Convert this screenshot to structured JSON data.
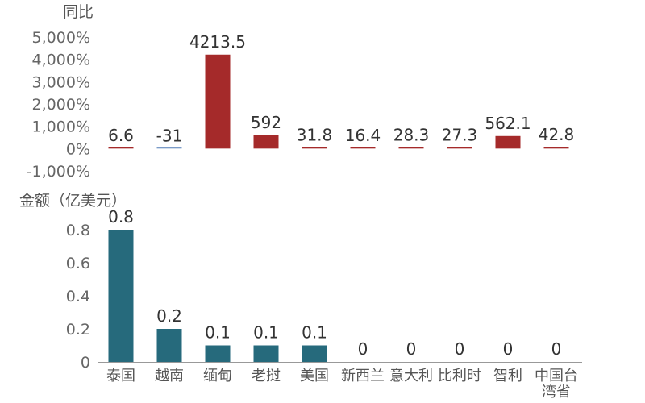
{
  "chart_data": [
    {
      "type": "bar",
      "ylabel": "同比",
      "categories": [
        "泰国",
        "越南",
        "缅甸",
        "老挝",
        "美国",
        "新西兰",
        "意大利",
        "比利时",
        "智利",
        "中国台湾省"
      ],
      "values": [
        6.6,
        -31,
        4213.5,
        592,
        31.8,
        16.4,
        28.3,
        27.3,
        562.1,
        42.8
      ],
      "value_labels": [
        "6.6",
        "-31",
        "4213.5",
        "592",
        "31.8",
        "16.4",
        "28.3",
        "27.3",
        "562.1",
        "42.8"
      ],
      "yticks": [
        "5,000%",
        "4,000%",
        "3,000%",
        "2,000%",
        "1,000%",
        "0%",
        "-1,000%"
      ],
      "ylim": [
        -1000,
        5000
      ],
      "colors": {
        "positive": "#a52a2a",
        "negative": "#7b9bc8"
      }
    },
    {
      "type": "bar",
      "ylabel": "金额（亿美元）",
      "categories": [
        "泰国",
        "越南",
        "缅甸",
        "老挝",
        "美国",
        "新西兰",
        "意大利",
        "比利时",
        "智利",
        "中国台湾省"
      ],
      "category_labels": [
        [
          "泰国"
        ],
        [
          "越南"
        ],
        [
          "缅甸"
        ],
        [
          "老挝"
        ],
        [
          "美国"
        ],
        [
          "新西兰"
        ],
        [
          "意大利"
        ],
        [
          "比利时"
        ],
        [
          "智利"
        ],
        [
          "中国台",
          "湾省"
        ]
      ],
      "values": [
        0.8,
        0.2,
        0.1,
        0.1,
        0.1,
        0,
        0,
        0,
        0,
        0
      ],
      "value_labels": [
        "0.8",
        "0.2",
        "0.1",
        "0.1",
        "0.1",
        "0",
        "0",
        "0",
        "0",
        "0"
      ],
      "yticks": [
        "0.8",
        "0.6",
        "0.4",
        "0.2",
        "0"
      ],
      "ylim": [
        0,
        0.8
      ],
      "colors": {
        "bar": "#266a7c",
        "axis": "#999999"
      }
    }
  ]
}
